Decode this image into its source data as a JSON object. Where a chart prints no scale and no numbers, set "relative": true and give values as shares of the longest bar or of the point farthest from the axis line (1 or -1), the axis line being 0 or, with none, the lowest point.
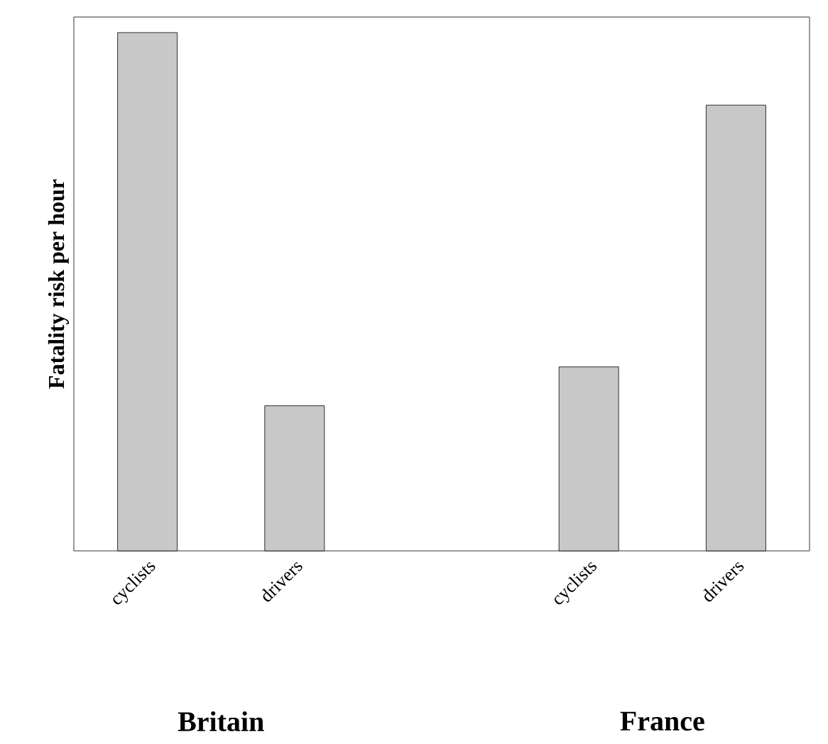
{
  "chart_data": {
    "type": "bar",
    "relative": true,
    "ylabel": "Fatality risk per hour",
    "categories": [
      "cyclists",
      "drivers",
      null,
      "cyclists",
      "drivers"
    ],
    "values": [
      1,
      0.28,
      null,
      0.355,
      0.86
    ],
    "color": "#c8c8c8",
    "annotations": [
      "Britain",
      "France"
    ]
  }
}
